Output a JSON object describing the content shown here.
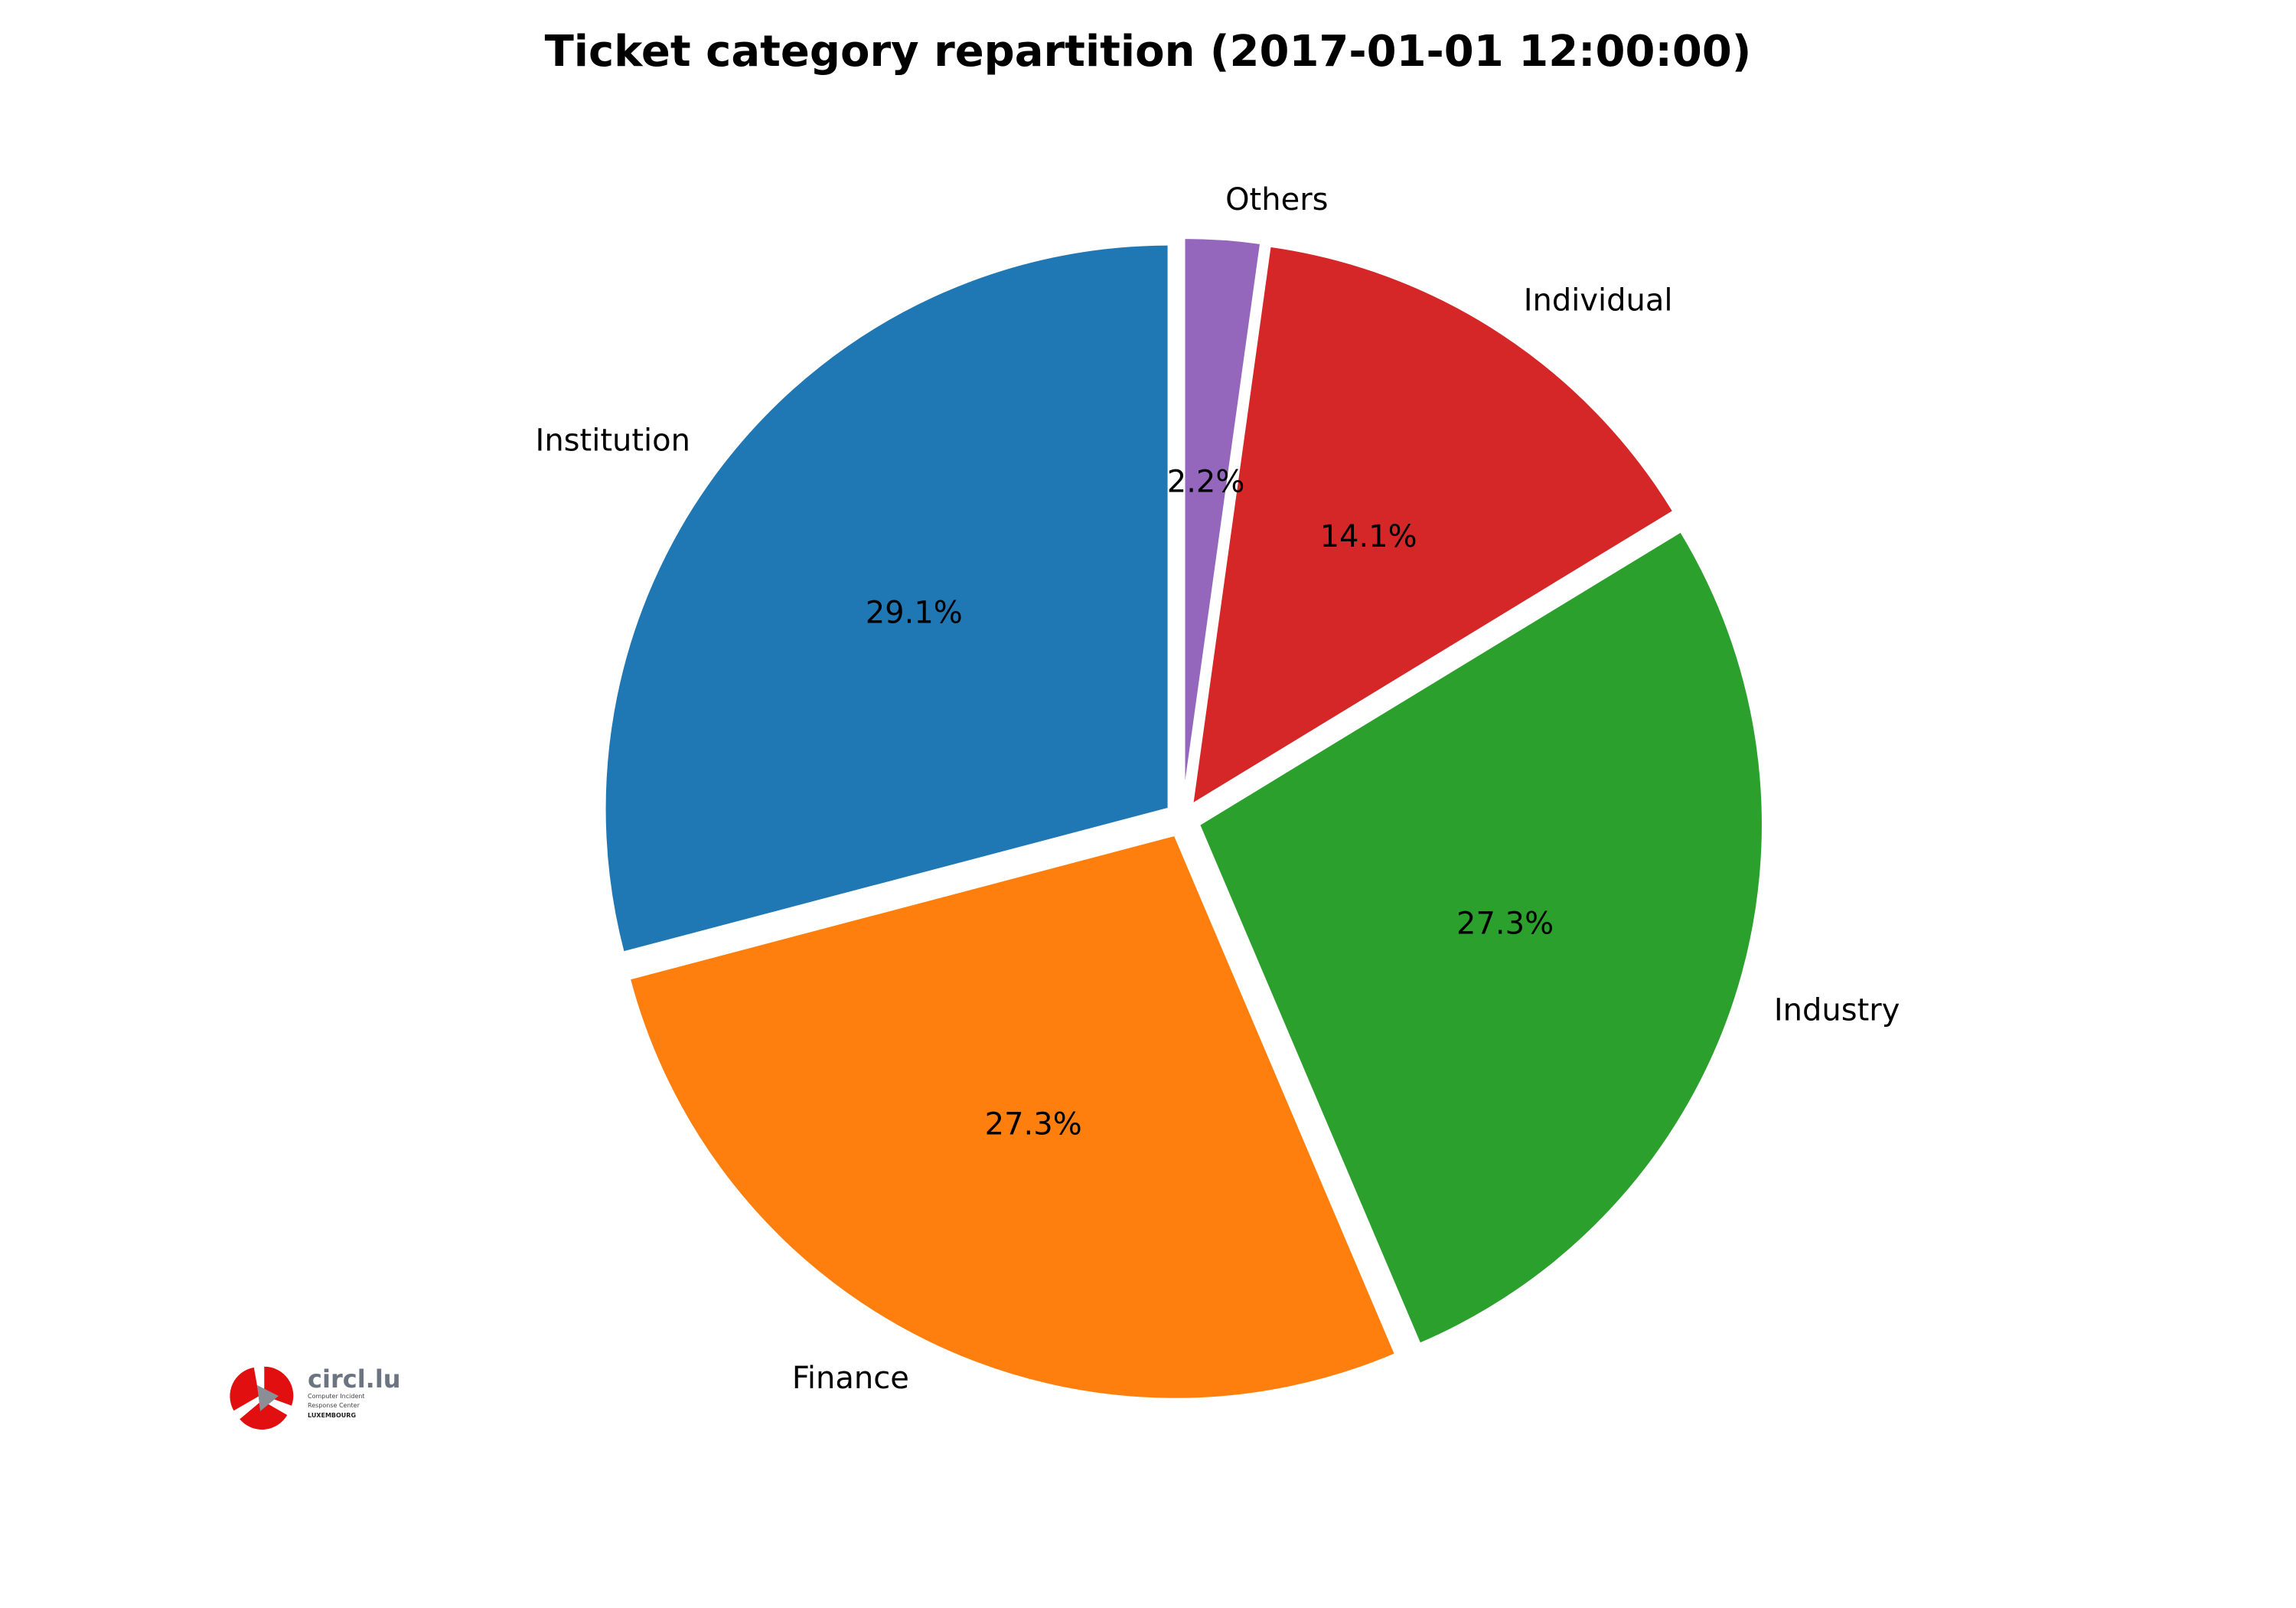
{
  "chart_data": {
    "type": "pie",
    "title": "Ticket category repartition (2017-01-01 12:00:00)",
    "start_angle_deg": 90,
    "direction": "clockwise",
    "exploded": true,
    "slices": [
      {
        "label": "Others",
        "value": 2.2,
        "pct_label": "2.2%",
        "color": "#9467bd"
      },
      {
        "label": "Individual",
        "value": 14.1,
        "pct_label": "14.1%",
        "color": "#d62728"
      },
      {
        "label": "Industry",
        "value": 27.3,
        "pct_label": "27.3%",
        "color": "#2ca02c"
      },
      {
        "label": "Finance",
        "value": 27.3,
        "pct_label": "27.3%",
        "color": "#ff7f0e"
      },
      {
        "label": "Institution",
        "value": 29.1,
        "pct_label": "29.1%",
        "color": "#1f77b4"
      }
    ]
  },
  "logo": {
    "name": "circl.lu",
    "line1": "Computer Incident",
    "line2": "Response Center",
    "line3": "LUXEMBOURG",
    "color": "#e10f0f"
  }
}
